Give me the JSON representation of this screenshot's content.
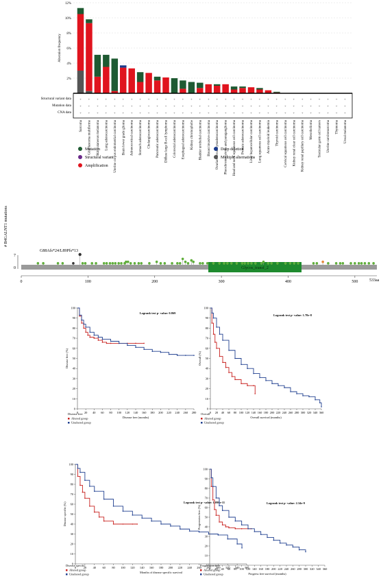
{
  "panel_a": {
    "ylabel": "Alteration frequency",
    "row_labels": [
      "Structural variant data",
      "Mutation data",
      "CNA data"
    ],
    "legend": [
      {
        "label": "Mutation",
        "color": "#1e5a32"
      },
      {
        "label": "Structural variant",
        "color": "#6a2a8a"
      },
      {
        "label": "Amplification",
        "color": "#e0141e"
      },
      {
        "label": "Deep deletion",
        "color": "#1a3a8c"
      },
      {
        "label": "Multiple alternations",
        "color": "#555555"
      }
    ]
  },
  "panel_b": {
    "ylabel": "# B4GALNT1 mutations",
    "hotspot_label": "G88Afs*24/L89Pfs*13",
    "domain_label": "Glycos_transf_2",
    "axis_end_label": "533aa"
  },
  "panel_c": {
    "altered_label": "Altered group",
    "unaltered_label": "Unaltered group"
  },
  "colors": {
    "amplification": "#e0141e",
    "mutation": "#1e5a32",
    "deep_deletion": "#1a3a8c",
    "multiple": "#555555",
    "altered": "#c8201e",
    "unaltered": "#1f3f8f",
    "lollipop": "#5fae3a",
    "domain": "#1e8a2e"
  },
  "chart_data": [
    {
      "type": "bar",
      "stacked": true,
      "ylabel": "Alteration frequency",
      "ylim": [
        0,
        12
      ],
      "yticks": [
        "2%",
        "4%",
        "6%",
        "8%",
        "10%",
        "12%"
      ],
      "categories": [
        "Sarcoma",
        "Glioblastoma multiforme",
        "Skin cutaneous melanoma",
        "Lung adenocarcinoma",
        "Uterine corpus endometrial carcinoma",
        "Brain lower grade glioma",
        "Adrenocortical carcinoma",
        "Stomach adenocarcinoma",
        "Cholangiocarcinoma",
        "Pancreatic adenocarcinoma",
        "Diffuse large B-cell lymphoma",
        "Colorectal adenocarcinoma",
        "Esophageal adenocarcinoma",
        "Kidney chromophobe",
        "Bladder urothelial carcinoma",
        "Breast invasive carcinoma",
        "Ovarian serous cystadenocarcinoma",
        "Pheochromocytoma and paraganglioma",
        "Head and neck squamous cell carcinoma",
        "Prostate adenocarcinoma",
        "Liver hepatocellular carcinoma",
        "Lung squamous cell carcinoma",
        "Acute myeloid leukemia",
        "Thyroid carcinoma",
        "Cervical squamous cell carcinoma",
        "Kidney renal clear cell carcinoma",
        "Kidney renal papillary cell carcinoma",
        "Mesothelioma",
        "Testicular germ cell tumors",
        "Uterine carcinosarcoma",
        "Thymoma",
        "Uveal melanoma"
      ],
      "series": [
        {
          "name": "Multiple alternations",
          "values": [
            3.0,
            0.3,
            0,
            0,
            0,
            0,
            0,
            0,
            0,
            0,
            0,
            0,
            0,
            0,
            0,
            0,
            0,
            0,
            0,
            0,
            0,
            0,
            0,
            0,
            0,
            0,
            0,
            0,
            0,
            0,
            0,
            0
          ]
        },
        {
          "name": "Amplification",
          "values": [
            7.5,
            9.0,
            2.2,
            3.5,
            0.3,
            3.4,
            3.3,
            1.5,
            2.7,
            1.7,
            2.1,
            0,
            0.6,
            0,
            0.7,
            1.2,
            1.0,
            1.2,
            0.5,
            0.7,
            0.8,
            0.5,
            0.4,
            0.1,
            0,
            0,
            0,
            0,
            0,
            0,
            0,
            0
          ]
        },
        {
          "name": "Deep deletion",
          "values": [
            0,
            0,
            0,
            0,
            0,
            0.3,
            0,
            0,
            0,
            0,
            0,
            0,
            0,
            0,
            0,
            0,
            0,
            0,
            0,
            0,
            0,
            0,
            0,
            0,
            0,
            0,
            0,
            0,
            0,
            0,
            0,
            0
          ]
        },
        {
          "name": "Mutation",
          "values": [
            0.8,
            0.5,
            2.9,
            1.6,
            4.3,
            0,
            0,
            1.3,
            0,
            0.5,
            0,
            2.0,
            1.1,
            1.5,
            0.7,
            0,
            0.2,
            0,
            0.4,
            0.2,
            0,
            0.2,
            0,
            0.1,
            0,
            0,
            0,
            0,
            0,
            0,
            0,
            0
          ]
        }
      ]
    },
    {
      "type": "scatter",
      "subtype": "lollipop",
      "ylabel": "# B4GALNT1 mutations",
      "xlim": [
        0,
        533
      ],
      "ylim": [
        0,
        7
      ],
      "xticks": [
        0,
        100,
        200,
        300,
        400,
        500
      ],
      "domain": {
        "name": "Glycos_transf_2",
        "start": 282,
        "end": 418
      },
      "hotspot": {
        "position": 88,
        "count": 7,
        "label": "G88Afs*24/L89Pfs*13"
      },
      "points": [
        [
          25,
          1
        ],
        [
          33,
          1
        ],
        [
          55,
          1
        ],
        [
          62,
          1
        ],
        [
          78,
          1
        ],
        [
          88,
          7
        ],
        [
          92,
          1
        ],
        [
          96,
          1
        ],
        [
          106,
          1
        ],
        [
          112,
          1
        ],
        [
          124,
          1
        ],
        [
          128,
          1
        ],
        [
          133,
          1
        ],
        [
          137,
          1
        ],
        [
          141,
          1
        ],
        [
          146,
          1
        ],
        [
          150,
          1
        ],
        [
          155,
          1
        ],
        [
          157,
          2
        ],
        [
          160,
          2
        ],
        [
          164,
          1
        ],
        [
          170,
          1
        ],
        [
          176,
          1
        ],
        [
          180,
          1
        ],
        [
          192,
          1
        ],
        [
          203,
          2
        ],
        [
          209,
          1
        ],
        [
          215,
          1
        ],
        [
          226,
          1
        ],
        [
          234,
          1
        ],
        [
          238,
          1
        ],
        [
          242,
          4
        ],
        [
          246,
          2
        ],
        [
          250,
          1
        ],
        [
          255,
          3
        ],
        [
          258,
          2
        ],
        [
          268,
          1
        ],
        [
          272,
          1
        ],
        [
          279,
          1
        ],
        [
          288,
          1
        ],
        [
          297,
          1
        ],
        [
          304,
          1
        ],
        [
          309,
          1
        ],
        [
          315,
          1
        ],
        [
          323,
          1
        ],
        [
          331,
          1
        ],
        [
          335,
          1
        ],
        [
          340,
          1
        ],
        [
          345,
          1
        ],
        [
          351,
          1
        ],
        [
          360,
          1
        ],
        [
          363,
          2
        ],
        [
          370,
          1
        ],
        [
          375,
          1
        ],
        [
          384,
          1
        ],
        [
          396,
          1
        ],
        [
          403,
          1
        ],
        [
          409,
          1
        ],
        [
          415,
          1
        ],
        [
          438,
          1
        ],
        [
          443,
          1
        ],
        [
          452,
          2
        ],
        [
          460,
          1
        ],
        [
          472,
          1
        ],
        [
          478,
          1
        ],
        [
          482,
          1
        ],
        [
          494,
          1
        ],
        [
          500,
          1
        ],
        [
          506,
          1
        ],
        [
          510,
          1
        ],
        [
          515,
          1
        ],
        [
          521,
          1
        ],
        [
          528,
          1
        ]
      ]
    },
    {
      "type": "line",
      "subtype": "survival",
      "title": "Disease free",
      "legend_title": "Disease free",
      "pvalue_label": "Logrank test p- value: 0.869",
      "xlabel": "Disease free (months)",
      "ylabel": "Disease free (%)",
      "xlim": [
        0,
        280
      ],
      "xticks": [
        0,
        20,
        40,
        60,
        80,
        100,
        120,
        140,
        160,
        180,
        200,
        220,
        240,
        260,
        280
      ],
      "ylim": [
        0,
        100
      ],
      "yticks": [
        0,
        10,
        20,
        30,
        40,
        50,
        60,
        70,
        80,
        90,
        100
      ],
      "series": [
        {
          "name": "Altered group",
          "x": [
            0,
            5,
            10,
            15,
            20,
            25,
            30,
            40,
            50,
            60,
            70,
            80,
            100,
            120,
            140,
            160
          ],
          "y": [
            100,
            92,
            85,
            80,
            76,
            73,
            71,
            70,
            68,
            66,
            65,
            65,
            65,
            65,
            65,
            65
          ]
        },
        {
          "name": "Unaltered group",
          "x": [
            0,
            5,
            10,
            15,
            20,
            30,
            40,
            50,
            60,
            80,
            100,
            120,
            140,
            160,
            180,
            200,
            220,
            240,
            260,
            280
          ],
          "y": [
            100,
            93,
            88,
            84,
            81,
            76,
            73,
            71,
            69,
            67,
            65,
            63,
            61,
            59,
            57,
            56,
            54,
            53,
            53,
            53
          ]
        }
      ]
    },
    {
      "type": "line",
      "subtype": "survival",
      "title": "Overall",
      "legend_title": "Overall",
      "pvalue_label": "Logrank test p- value: 1.78e-8",
      "xlabel": "Overall survival (months)",
      "ylabel": "Overall (%)",
      "xlim": [
        0,
        360
      ],
      "xticks": [
        0,
        20,
        40,
        60,
        80,
        100,
        120,
        140,
        160,
        180,
        200,
        220,
        240,
        260,
        280,
        300,
        320,
        340,
        360
      ],
      "ylim": [
        0,
        100
      ],
      "yticks": [
        0,
        10,
        20,
        30,
        40,
        50,
        60,
        70,
        80,
        90,
        100
      ],
      "series": [
        {
          "name": "Altered group",
          "x": [
            0,
            5,
            10,
            15,
            20,
            30,
            40,
            50,
            60,
            70,
            80,
            100,
            120,
            140,
            145
          ],
          "y": [
            100,
            85,
            74,
            66,
            60,
            52,
            46,
            41,
            36,
            32,
            29,
            25,
            23,
            23,
            15
          ]
        },
        {
          "name": "Unaltered group",
          "x": [
            0,
            5,
            10,
            20,
            30,
            40,
            60,
            80,
            100,
            120,
            140,
            160,
            180,
            200,
            220,
            240,
            260,
            280,
            300,
            320,
            340,
            355,
            360
          ],
          "y": [
            100,
            95,
            90,
            81,
            74,
            68,
            58,
            50,
            44,
            40,
            35,
            31,
            28,
            25,
            23,
            21,
            17,
            15,
            13,
            12,
            9,
            6,
            2
          ]
        }
      ]
    },
    {
      "type": "line",
      "subtype": "survival",
      "title": "Disease specific",
      "legend_title": "Disease specific",
      "pvalue_label": "Logrank test p- value: 1.090e-11",
      "xlabel": "Months of disease specific survival",
      "ylabel": "Disease specific (%)",
      "xlim": [
        0,
        360
      ],
      "xticks": [
        0,
        20,
        40,
        60,
        80,
        100,
        120,
        140,
        160,
        180,
        200,
        220,
        240,
        260,
        280,
        300,
        320,
        340,
        360
      ],
      "ylim": [
        0,
        100
      ],
      "yticks": [
        0,
        10,
        20,
        30,
        40,
        50,
        60,
        70,
        80,
        90,
        100
      ],
      "series": [
        {
          "name": "Altered group",
          "x": [
            0,
            5,
            10,
            15,
            20,
            30,
            40,
            50,
            60,
            80,
            100,
            120,
            130
          ],
          "y": [
            100,
            88,
            79,
            72,
            66,
            58,
            52,
            47,
            43,
            40,
            40,
            40,
            40
          ]
        },
        {
          "name": "Unaltered group",
          "x": [
            0,
            5,
            10,
            20,
            30,
            40,
            60,
            80,
            100,
            120,
            140,
            160,
            180,
            200,
            220,
            240,
            260,
            280,
            300,
            320,
            340,
            350
          ],
          "y": [
            100,
            96,
            92,
            84,
            78,
            73,
            65,
            58,
            53,
            49,
            46,
            43,
            40,
            38,
            35,
            33,
            32,
            30,
            29,
            25,
            20,
            16
          ]
        }
      ]
    },
    {
      "type": "line",
      "subtype": "survival",
      "title": "Progression free",
      "legend_title": "Progression free",
      "pvalue_label": "Logrank test p- value: 2.34e-9",
      "xlabel": "Progress free survival (months)",
      "ylabel": "Progression free (%)",
      "xlim": [
        0,
        360
      ],
      "xticks": [
        0,
        20,
        40,
        60,
        80,
        100,
        120,
        140,
        160,
        180,
        200,
        220,
        240,
        260,
        280,
        300,
        320,
        340,
        360
      ],
      "ylim": [
        0,
        100
      ],
      "yticks": [
        0,
        10,
        20,
        30,
        40,
        50,
        60,
        70,
        80,
        90,
        100
      ],
      "series": [
        {
          "name": "Altered group",
          "x": [
            0,
            5,
            10,
            15,
            20,
            30,
            40,
            50,
            60,
            80,
            100,
            120,
            130
          ],
          "y": [
            100,
            82,
            68,
            58,
            52,
            45,
            42,
            40,
            39,
            38,
            38,
            38,
            38
          ]
        },
        {
          "name": "Unaltered group",
          "x": [
            0,
            5,
            10,
            20,
            30,
            40,
            60,
            80,
            100,
            120,
            140,
            160,
            180,
            200,
            220,
            240,
            260,
            280,
            300
          ],
          "y": [
            100,
            91,
            82,
            70,
            62,
            57,
            50,
            46,
            42,
            38,
            35,
            32,
            29,
            26,
            23,
            21,
            19,
            16,
            14
          ]
        }
      ]
    }
  ]
}
